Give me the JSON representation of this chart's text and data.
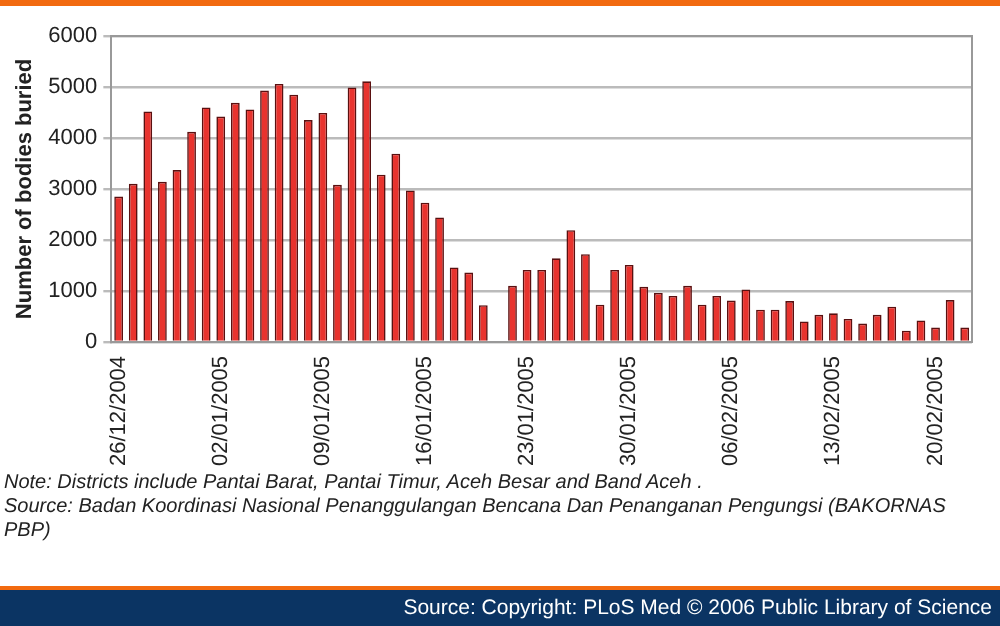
{
  "chart_data": {
    "type": "bar",
    "ylabel": "Number of bodies buried",
    "categories": [
      "26/12/2004",
      null,
      null,
      null,
      null,
      null,
      null,
      "02/01/2005",
      null,
      null,
      null,
      null,
      null,
      null,
      "09/01/2005",
      null,
      null,
      null,
      null,
      null,
      null,
      "16/01/2005",
      null,
      null,
      null,
      null,
      null,
      null,
      "23/01/2005",
      null,
      null,
      null,
      null,
      null,
      null,
      "30/01/2005",
      null,
      null,
      null,
      null,
      null,
      null,
      "06/02/2005",
      null,
      null,
      null,
      null,
      null,
      null,
      "13/02/2005",
      null,
      null,
      null,
      null,
      null,
      null,
      "20/02/2005",
      null,
      null
    ],
    "values": [
      2850,
      3100,
      4520,
      3140,
      3370,
      4120,
      4600,
      4420,
      4690,
      4560,
      4930,
      5060,
      4850,
      4350,
      4490,
      3080,
      4990,
      5110,
      3280,
      3690,
      2970,
      2730,
      2440,
      1460,
      1360,
      720,
      null,
      1100,
      1410,
      1410,
      1640,
      2190,
      1720,
      730,
      1410,
      1510,
      1080,
      960,
      900,
      1100,
      730,
      900,
      810,
      1030,
      630,
      630,
      800,
      400,
      530,
      560,
      450,
      360,
      530,
      690,
      220,
      420,
      280,
      820,
      280
    ],
    "color": "#e8332e",
    "ylim": [
      0,
      6000
    ],
    "yticks": [
      0,
      1000,
      2000,
      3000,
      4000,
      5000,
      6000
    ],
    "grid": "y",
    "legend": false,
    "annotations": [
      "Note: Districts  include Pantai Barat, Pantai Timur, Aceh Besar and Band Aceh .",
      "Source: Badan Koordinasi Nasional Penanggulangan Bencana Dan Penanganan Pengungsi (BAKORNAS PBP)",
      "Source: Copyright: PLoS Med © 2006 Public Library of Science"
    ]
  }
}
